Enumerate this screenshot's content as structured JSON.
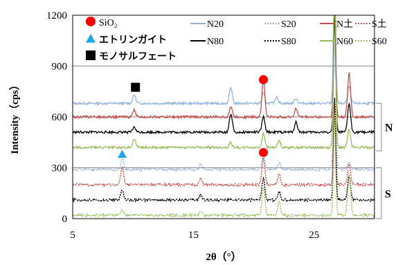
{
  "chart_data": {
    "type": "line",
    "xlabel": "2θ（°）",
    "ylabel": "Intensity（cps）",
    "xlim": [
      5,
      30
    ],
    "ylim": [
      0,
      1200
    ],
    "xticks": [
      "5",
      "15",
      "25"
    ],
    "xtick_values": [
      5,
      15,
      25
    ],
    "yticks": [
      "0",
      "300",
      "600",
      "900",
      "1200"
    ],
    "ytick_values": [
      0,
      300,
      600,
      900,
      1200
    ],
    "grid": "horizontal",
    "legend_position": "top",
    "markers": [
      {
        "label": "SiO₂",
        "shape": "circle",
        "color": "#ff0000"
      },
      {
        "label": "エトリンガイト",
        "shape": "triangle",
        "color": "#1ea6e6"
      },
      {
        "label": "モノサルフェート",
        "shape": "square",
        "color": "#000000"
      }
    ],
    "marker_points": [
      {
        "shape": "circle",
        "color": "#ff0000",
        "x": 20.8,
        "y": 820
      },
      {
        "shape": "circle",
        "color": "#ff0000",
        "x": 20.8,
        "y": 390
      },
      {
        "shape": "triangle",
        "color": "#1ea6e6",
        "x": 9.1,
        "y": 380
      },
      {
        "shape": "square",
        "color": "#000000",
        "x": 10.2,
        "y": 775
      }
    ],
    "series": [
      {
        "name": "N20",
        "color": "#95b3d7",
        "dash": "solid",
        "baseline": 680,
        "peaks": [
          [
            10.1,
            50
          ],
          [
            18.1,
            90
          ],
          [
            20.8,
            60
          ],
          [
            21.9,
            40
          ],
          [
            23.5,
            30
          ],
          [
            26.7,
            900
          ],
          [
            27.9,
            100
          ]
        ]
      },
      {
        "name": "S20",
        "color": "#95b3d7",
        "dash": "dotted",
        "baseline": 290,
        "peaks": [
          [
            9.1,
            60
          ],
          [
            15.6,
            35
          ],
          [
            20.8,
            80
          ],
          [
            22.1,
            40
          ],
          [
            26.7,
            300
          ],
          [
            27.9,
            40
          ]
        ]
      },
      {
        "name": "N土",
        "color": "#c0504d",
        "dash": "solid",
        "baseline": 600,
        "peaks": [
          [
            10.1,
            40
          ],
          [
            18.1,
            60
          ],
          [
            20.8,
            220
          ],
          [
            23.5,
            50
          ],
          [
            26.7,
            600
          ],
          [
            27.9,
            260
          ]
        ]
      },
      {
        "name": "S土",
        "color": "#c0504d",
        "dash": "dotted",
        "baseline": 200,
        "peaks": [
          [
            9.1,
            100
          ],
          [
            15.6,
            40
          ],
          [
            20.8,
            160
          ],
          [
            22.1,
            60
          ],
          [
            26.7,
            500
          ],
          [
            27.9,
            120
          ]
        ]
      },
      {
        "name": "N80",
        "color": "#000000",
        "dash": "solid",
        "baseline": 510,
        "peaks": [
          [
            10.1,
            30
          ],
          [
            18.1,
            110
          ],
          [
            20.8,
            90
          ],
          [
            23.5,
            60
          ],
          [
            26.7,
            700
          ],
          [
            27.9,
            170
          ]
        ]
      },
      {
        "name": "S80",
        "color": "#000000",
        "dash": "dotted",
        "baseline": 110,
        "peaks": [
          [
            9.1,
            60
          ],
          [
            15.6,
            30
          ],
          [
            20.8,
            130
          ],
          [
            22.1,
            45
          ],
          [
            26.7,
            600
          ],
          [
            27.9,
            140
          ]
        ]
      },
      {
        "name": "N60",
        "color": "#9bbb59",
        "dash": "solid",
        "baseline": 420,
        "peaks": [
          [
            10.1,
            50
          ],
          [
            18.1,
            30
          ],
          [
            20.8,
            80
          ],
          [
            22.1,
            40
          ],
          [
            26.7,
            1060
          ],
          [
            27.9,
            110
          ]
        ]
      },
      {
        "name": "S60",
        "color": "#9bbb59",
        "dash": "dotted",
        "baseline": 20,
        "peaks": [
          [
            9.1,
            30
          ],
          [
            15.6,
            20
          ],
          [
            20.8,
            160
          ],
          [
            22.1,
            80
          ],
          [
            26.7,
            600
          ],
          [
            27.9,
            240
          ]
        ]
      }
    ],
    "brackets": [
      {
        "label": "N",
        "range": [
          400,
          680
        ]
      },
      {
        "label": "S",
        "range": [
          0,
          300
        ]
      }
    ]
  }
}
